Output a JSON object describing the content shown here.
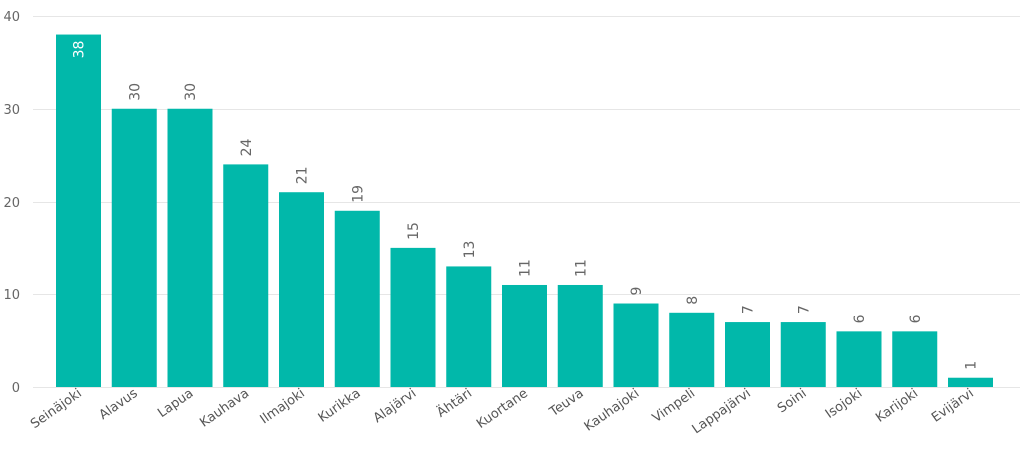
{
  "chart_data": {
    "type": "bar",
    "title": "",
    "xlabel": "",
    "ylabel": "",
    "categories": [
      "Seinäjoki",
      "Alavus",
      "Lapua",
      "Kauhava",
      "Ilmajoki",
      "Kurikka",
      "Alajärvi",
      "Ähtäri",
      "Kuortane",
      "Teuva",
      "Kauhajoki",
      "Vimpeli",
      "Lappajärvi",
      "Soini",
      "Isojoki",
      "Karijoki",
      "Evijärvi"
    ],
    "values": [
      38,
      30,
      30,
      24,
      21,
      19,
      15,
      13,
      11,
      11,
      9,
      8,
      7,
      7,
      6,
      6,
      1
    ],
    "ylim": [
      0,
      40
    ],
    "yticks": [
      0,
      10,
      20,
      30,
      40
    ],
    "grid": true,
    "legend": "none",
    "bar_color": "#01b8aa",
    "data_labels": true
  }
}
